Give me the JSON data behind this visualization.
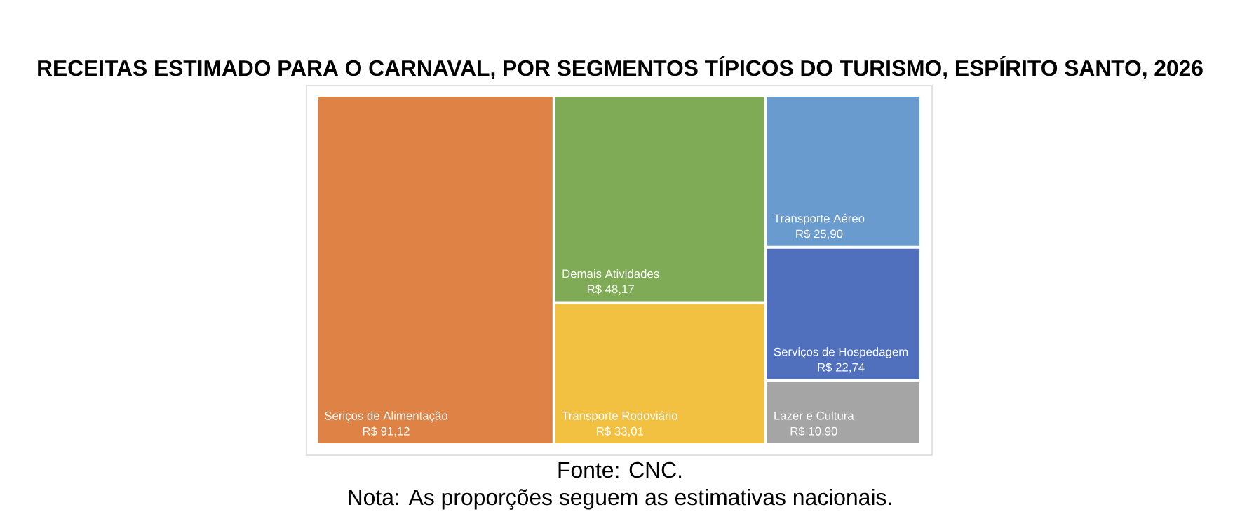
{
  "chart_data": {
    "type": "other",
    "title": "RECEITAS ESTIMADO PARA O CARNAVAL, POR SEGMENTOS TÍPICOS DO TURISMO, ESPÍRITO SANTO, 2026",
    "categories": [
      "Seriços de Alimentação",
      "Demais Atividades",
      "Transporte Rodoviário",
      "Transporte Aéreo",
      "Serviços de Hospedagem",
      "Lazer e Cultura"
    ],
    "values": [
      91.12,
      48.17,
      33.01,
      25.9,
      22.74,
      10.9
    ],
    "value_labels": [
      "R$ 91,12",
      "R$ 48,17",
      "R$ 33,01",
      "R$ 25,90",
      "R$ 22,74",
      "R$ 10,90"
    ],
    "colors": [
      "#de8345",
      "#7fab57",
      "#f3c142",
      "#6a9bce",
      "#5070be",
      "#a5a5a5"
    ],
    "annotations": [
      "Fonte: CNC.",
      "Nota: As proporções seguem as estimativas nacionais."
    ]
  }
}
